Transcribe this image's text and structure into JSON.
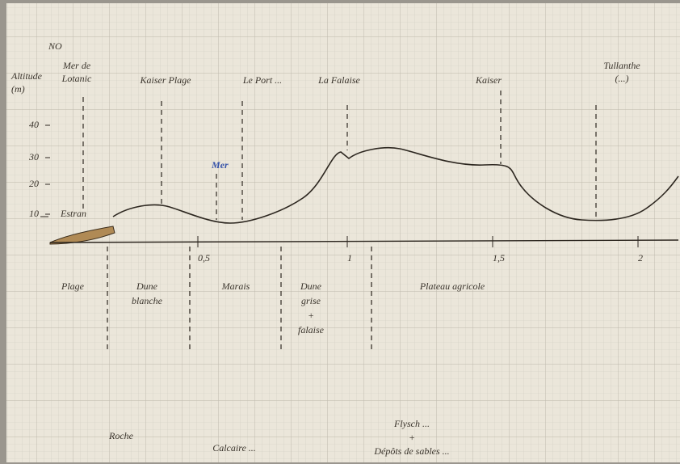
{
  "header": {
    "north": "NO",
    "y_axis_label": [
      "Altitude",
      "(m)"
    ]
  },
  "places": [
    {
      "label": [
        "Mer de",
        "Lotanic"
      ]
    },
    {
      "label": [
        "Kaiser Plage"
      ]
    },
    {
      "label": [
        "Le Port ..."
      ]
    },
    {
      "label": [
        "La Falaise"
      ]
    },
    {
      "label": [
        "Kaiser"
      ]
    },
    {
      "label": [
        "Tullanthe",
        "(...)"
      ]
    }
  ],
  "sea_label": "Mer",
  "beach_label": "Estran",
  "y_ticks": [
    "40",
    "30",
    "20",
    "10"
  ],
  "x_ticks": [
    "0,5",
    "1",
    "1,5",
    "2"
  ],
  "zones": [
    {
      "label": [
        "Plage"
      ]
    },
    {
      "label": [
        "Dune",
        "blanche"
      ]
    },
    {
      "label": [
        "Marais"
      ]
    },
    {
      "label": [
        "Dune",
        "grise",
        "+",
        "falaise"
      ]
    },
    {
      "label": [
        "Plateau agricole"
      ]
    }
  ],
  "notes": [
    {
      "label": [
        "Roche"
      ]
    },
    {
      "label": [
        "Calcaire ..."
      ]
    },
    {
      "label": [
        "Flysch ...",
        "+",
        "Dépôts de sables ..."
      ]
    }
  ]
}
